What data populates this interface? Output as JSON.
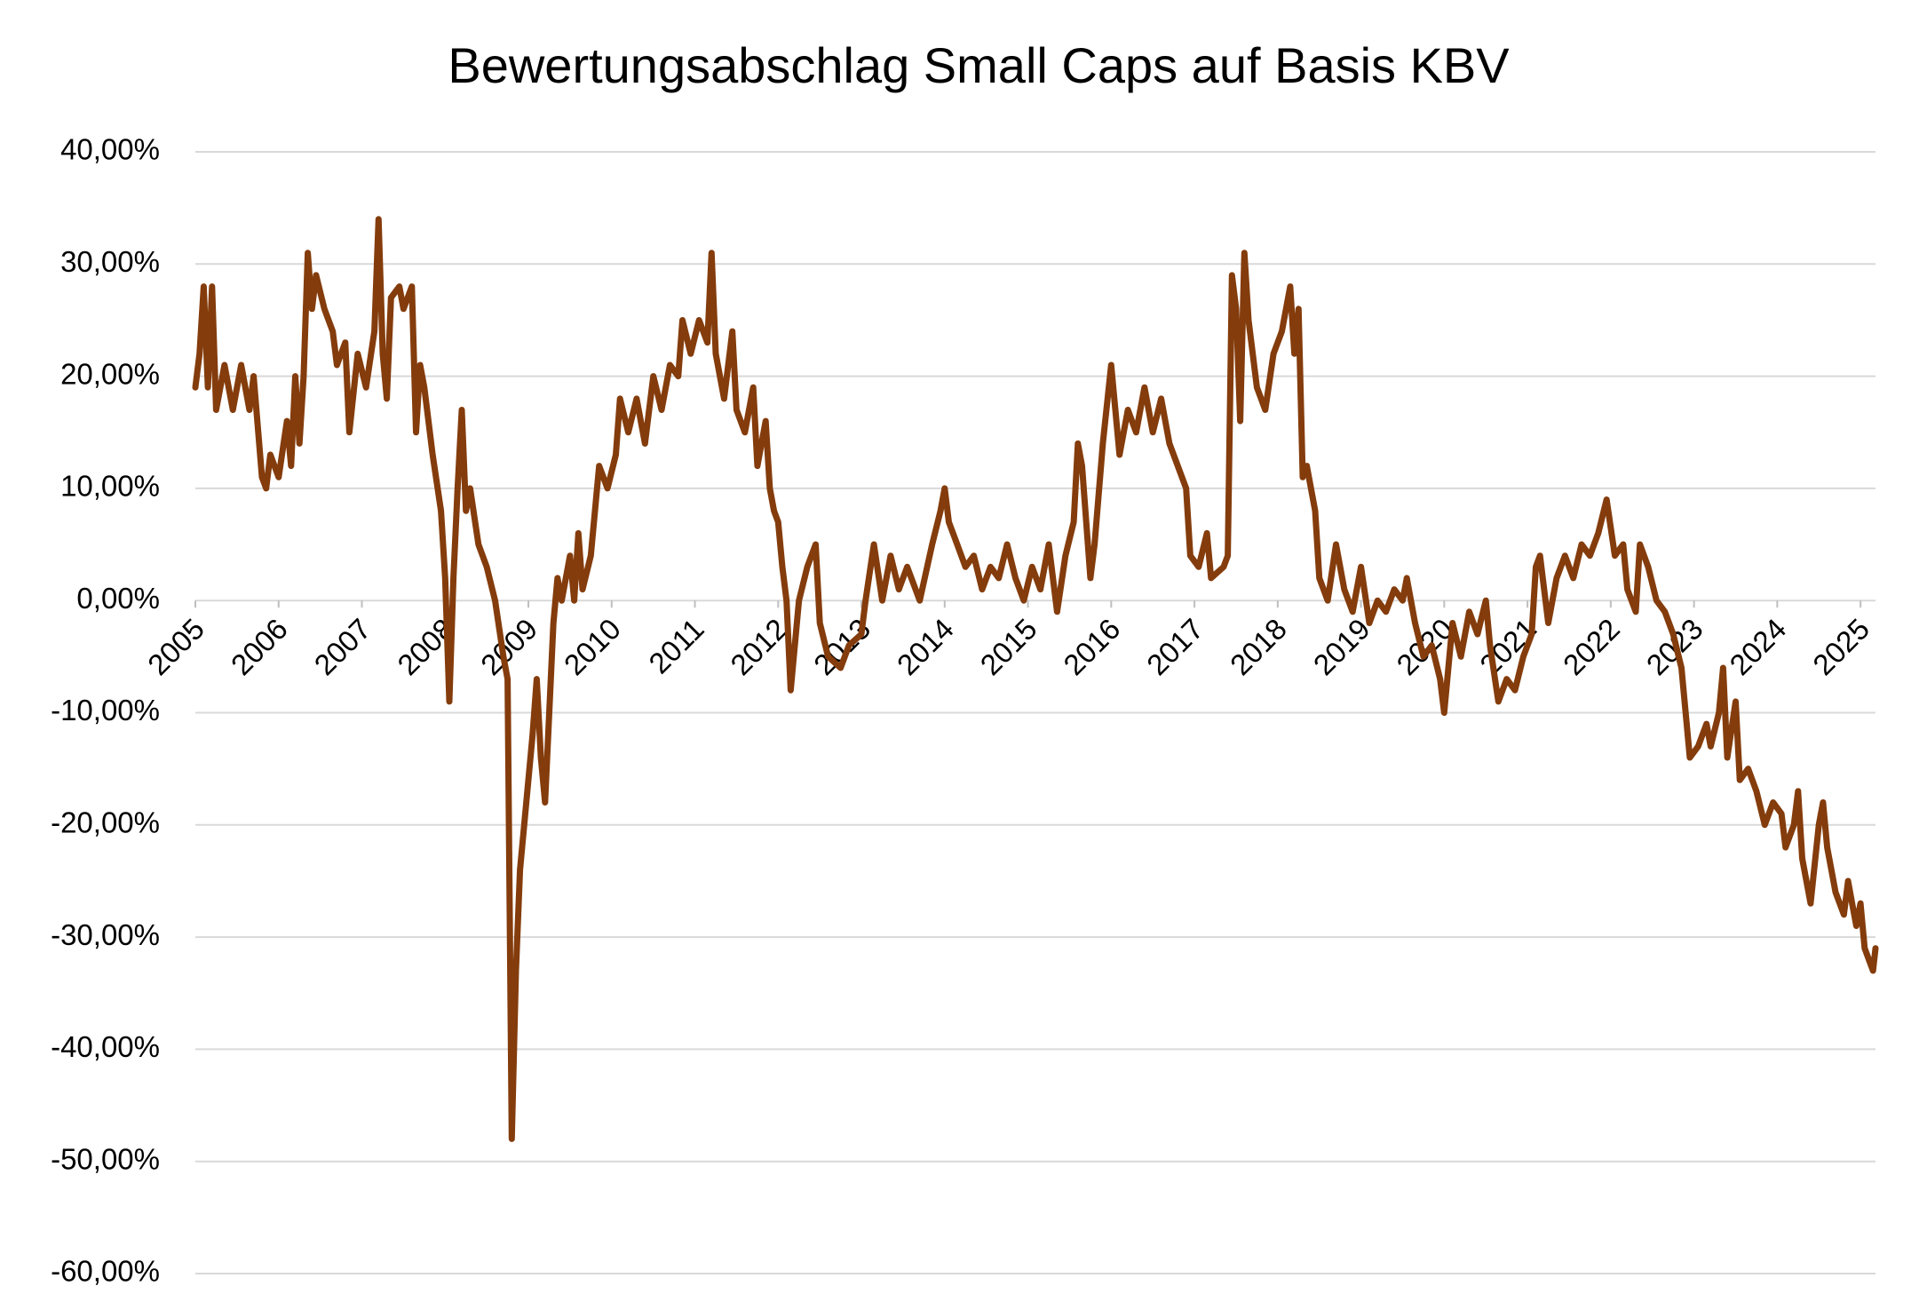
{
  "chart_data": {
    "type": "line",
    "title": "Bewertungsabschlag Small Caps auf Basis KBV",
    "xlim": [
      2005,
      2025.18
    ],
    "xticks": [
      2005,
      2006,
      2007,
      2008,
      2009,
      2010,
      2011,
      2012,
      2013,
      2014,
      2015,
      2016,
      2017,
      2018,
      2019,
      2020,
      2021,
      2022,
      2023,
      2024,
      2025
    ],
    "ylim": [
      -60,
      40
    ],
    "yticks": [
      {
        "value": 40,
        "label": "40,00%"
      },
      {
        "value": 30,
        "label": "30,00%"
      },
      {
        "value": 20,
        "label": "20,00%"
      },
      {
        "value": 10,
        "label": "10,00%"
      },
      {
        "value": 0,
        "label": "0,00%"
      },
      {
        "value": -10,
        "label": "-10,00%"
      },
      {
        "value": -20,
        "label": "-20,00%"
      },
      {
        "value": -30,
        "label": "-30,00%"
      },
      {
        "value": -40,
        "label": "-40,00%"
      },
      {
        "value": -50,
        "label": "-50,00%"
      },
      {
        "value": -60,
        "label": "-60,00%"
      }
    ],
    "grid": true,
    "series": [
      {
        "color": "#843c0c",
        "x": [
          2005.0,
          2005.05,
          2005.1,
          2005.15,
          2005.2,
          2005.25,
          2005.35,
          2005.45,
          2005.55,
          2005.65,
          2005.7,
          2005.8,
          2005.85,
          2005.9,
          2006.0,
          2006.1,
          2006.15,
          2006.2,
          2006.25,
          2006.3,
          2006.35,
          2006.4,
          2006.45,
          2006.55,
          2006.65,
          2006.7,
          2006.8,
          2006.85,
          2006.95,
          2007.05,
          2007.15,
          2007.2,
          2007.25,
          2007.3,
          2007.35,
          2007.45,
          2007.5,
          2007.6,
          2007.65,
          2007.7,
          2007.75,
          2007.85,
          2007.95,
          2008.0,
          2008.05,
          2008.1,
          2008.15,
          2008.2,
          2008.25,
          2008.3,
          2008.4,
          2008.5,
          2008.6,
          2008.7,
          2008.75,
          2008.8,
          2008.85,
          2008.9,
          2008.95,
          2009.0,
          2009.05,
          2009.1,
          2009.15,
          2009.2,
          2009.25,
          2009.3,
          2009.35,
          2009.4,
          2009.5,
          2009.55,
          2009.6,
          2009.65,
          2009.75,
          2009.85,
          2009.95,
          2010.05,
          2010.1,
          2010.2,
          2010.3,
          2010.4,
          2010.5,
          2010.6,
          2010.7,
          2010.8,
          2010.85,
          2010.95,
          2011.05,
          2011.15,
          2011.2,
          2011.25,
          2011.35,
          2011.45,
          2011.5,
          2011.6,
          2011.7,
          2011.75,
          2011.85,
          2011.9,
          2011.95,
          2012.0,
          2012.05,
          2012.1,
          2012.15,
          2012.25,
          2012.35,
          2012.45,
          2012.5,
          2012.6,
          2012.75,
          2012.85,
          2013.0,
          2013.05,
          2013.15,
          2013.25,
          2013.35,
          2013.45,
          2013.55,
          2013.7,
          2013.85,
          2013.95,
          2014.0,
          2014.05,
          2014.15,
          2014.25,
          2014.35,
          2014.45,
          2014.55,
          2014.65,
          2014.75,
          2014.85,
          2014.95,
          2015.05,
          2015.15,
          2015.25,
          2015.35,
          2015.45,
          2015.55,
          2015.6,
          2015.65,
          2015.75,
          2015.8,
          2015.9,
          2016.0,
          2016.1,
          2016.2,
          2016.3,
          2016.4,
          2016.5,
          2016.6,
          2016.7,
          2016.8,
          2016.9,
          2016.95,
          2017.05,
          2017.15,
          2017.2,
          2017.35,
          2017.4,
          2017.45,
          2017.5,
          2017.55,
          2017.6,
          2017.65,
          2017.75,
          2017.85,
          2017.95,
          2018.05,
          2018.15,
          2018.2,
          2018.25,
          2018.3,
          2018.35,
          2018.45,
          2018.5,
          2018.6,
          2018.7,
          2018.8,
          2018.9,
          2019.0,
          2019.1,
          2019.2,
          2019.3,
          2019.4,
          2019.5,
          2019.55,
          2019.65,
          2019.75,
          2019.85,
          2019.95,
          2020.0,
          2020.1,
          2020.2,
          2020.3,
          2020.4,
          2020.5,
          2020.55,
          2020.65,
          2020.75,
          2020.85,
          2020.95,
          2021.05,
          2021.1,
          2021.15,
          2021.25,
          2021.35,
          2021.45,
          2021.55,
          2021.65,
          2021.75,
          2021.85,
          2021.95,
          2022.05,
          2022.15,
          2022.2,
          2022.3,
          2022.35,
          2022.45,
          2022.55,
          2022.65,
          2022.75,
          2022.85,
          2022.95,
          2023.05,
          2023.15,
          2023.2,
          2023.3,
          2023.35,
          2023.4,
          2023.5,
          2023.55,
          2023.65,
          2023.75,
          2023.85,
          2023.95,
          2024.05,
          2024.1,
          2024.2,
          2024.25,
          2024.3,
          2024.4,
          2024.5,
          2024.55,
          2024.6,
          2024.7,
          2024.8,
          2024.85,
          2024.9,
          2024.95,
          2025.0,
          2025.05,
          2025.1,
          2025.15,
          2025.18
        ],
        "values": [
          19,
          22,
          28,
          19,
          28,
          17,
          21,
          17,
          21,
          17,
          20,
          11,
          10,
          13,
          11,
          16,
          12,
          20,
          14,
          20,
          31,
          26,
          29,
          26,
          24,
          21,
          23,
          15,
          22,
          19,
          24,
          34,
          22,
          18,
          27,
          28,
          26,
          28,
          15,
          21,
          19,
          13,
          8,
          2,
          -9,
          2,
          10,
          17,
          8,
          10,
          5,
          3,
          0,
          -5,
          -7,
          -48,
          -33,
          -24,
          -20,
          -16,
          -12,
          -7,
          -14,
          -18,
          -10,
          -2,
          2,
          0,
          4,
          0,
          6,
          1,
          4,
          12,
          10,
          13,
          18,
          15,
          18,
          14,
          20,
          17,
          21,
          20,
          25,
          22,
          25,
          23,
          31,
          22,
          18,
          24,
          17,
          15,
          19,
          12,
          16,
          10,
          8,
          7,
          3,
          0,
          -8,
          0,
          3,
          5,
          -2,
          -5,
          -6,
          -4,
          -3,
          0,
          5,
          0,
          4,
          1,
          3,
          0,
          5,
          8,
          10,
          7,
          5,
          3,
          4,
          1,
          3,
          2,
          5,
          2,
          0,
          3,
          1,
          5,
          -1,
          4,
          7,
          14,
          12,
          2,
          5,
          14,
          21,
          13,
          17,
          15,
          19,
          15,
          18,
          14,
          12,
          10,
          4,
          3,
          6,
          2,
          3,
          4,
          29,
          26,
          16,
          31,
          25,
          19,
          17,
          22,
          24,
          28,
          22,
          26,
          11,
          12,
          8,
          2,
          0,
          5,
          1,
          -1,
          3,
          -2,
          0,
          -1,
          1,
          0,
          2,
          -2,
          -5,
          -4,
          -7,
          -10,
          -2,
          -5,
          -1,
          -3,
          0,
          -4,
          -9,
          -7,
          -8,
          -5,
          -3,
          3,
          4,
          -2,
          2,
          4,
          2,
          5,
          4,
          6,
          9,
          4,
          5,
          1,
          -1,
          5,
          3,
          0,
          -1,
          -3,
          -6,
          -14,
          -13,
          -11,
          -13,
          -10,
          -6,
          -14,
          -9,
          -16,
          -15,
          -17,
          -20,
          -18,
          -19,
          -22,
          -20,
          -17,
          -23,
          -27,
          -20,
          -18,
          -22,
          -26,
          -28,
          -25,
          -27,
          -29,
          -27,
          -31,
          -32,
          -33,
          -31
        ]
      }
    ]
  }
}
